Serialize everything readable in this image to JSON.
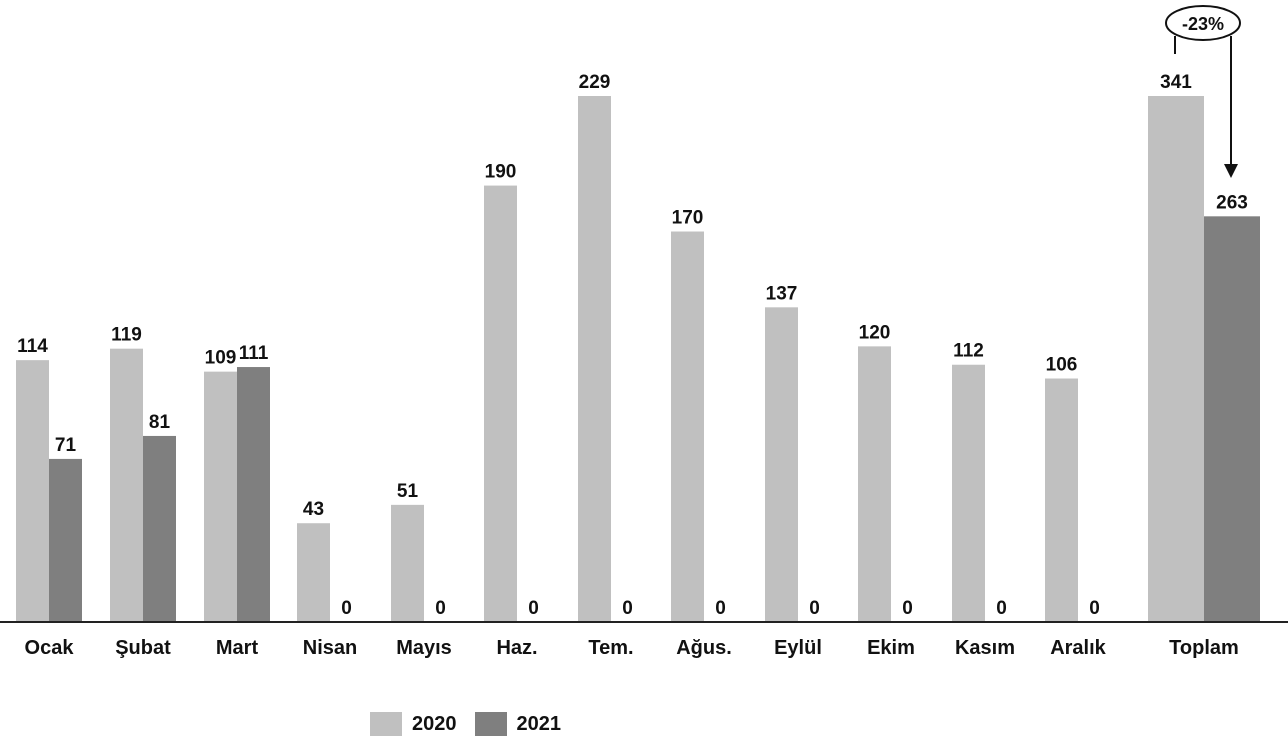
{
  "chart_data": {
    "type": "bar",
    "categories": [
      "Ocak",
      "Şubat",
      "Mart",
      "Nisan",
      "Mayıs",
      "Haz.",
      "Tem.",
      "Ağus.",
      "Eylül",
      "Ekim",
      "Kasım",
      "Aralık",
      "Toplam"
    ],
    "series": [
      {
        "name": "2020",
        "color": "#c0c0c0",
        "values": [
          114,
          119,
          109,
          43,
          51,
          190,
          229,
          170,
          137,
          120,
          112,
          106,
          341
        ]
      },
      {
        "name": "2021",
        "color": "#7f7f7f",
        "values": [
          71,
          81,
          111,
          0,
          0,
          0,
          0,
          0,
          0,
          0,
          0,
          0,
          263
        ]
      }
    ],
    "total_scale_max": 341,
    "annotation": "-23%",
    "legend_position": "bottom-center",
    "grid": false
  }
}
